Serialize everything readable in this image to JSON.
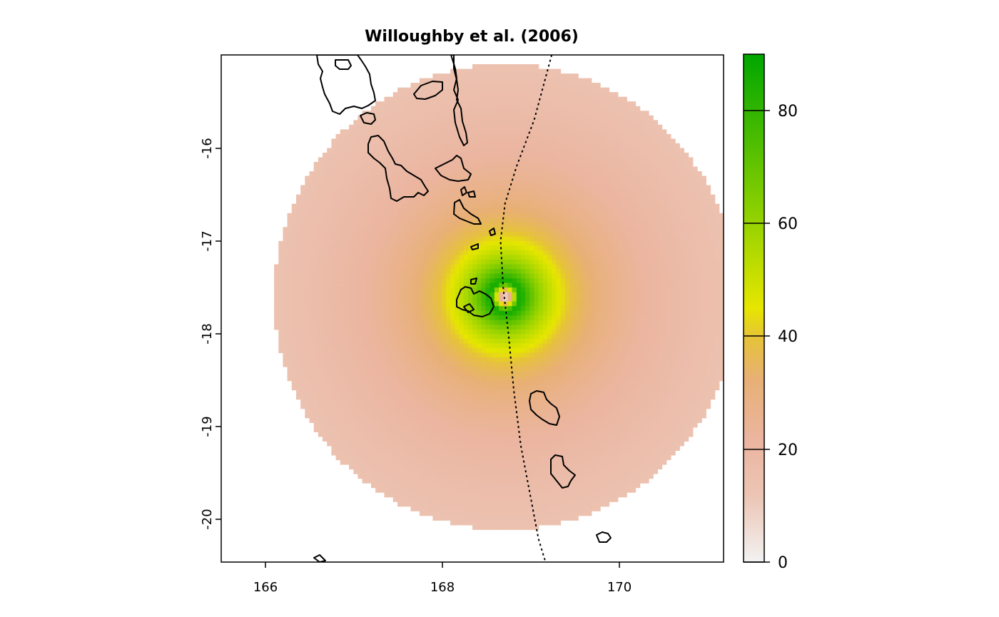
{
  "title": "Willoughby et al. (2006)",
  "x_ticks": [
    "166",
    "168",
    "170"
  ],
  "y_ticks": [
    "-16",
    "-17",
    "-18",
    "-19",
    "-20"
  ],
  "legend_ticks": [
    "0",
    "20",
    "40",
    "60",
    "80"
  ],
  "colors": {
    "scale_low": "#f2f2f2",
    "scale_pink": "#ebb5a0",
    "scale_orange": "#e6ab55",
    "scale_yellow": "#e6e600",
    "scale_green": "#00a600",
    "coastline": "#000000",
    "track": "#000000"
  },
  "chart_data": {
    "type": "heatmap",
    "title": "Willoughby et al. (2006)",
    "xlabel": "",
    "ylabel": "",
    "xlim": [
      165.5,
      171.2
    ],
    "ylim": [
      -20.45,
      -15.0
    ],
    "x_ticks": [
      166,
      168,
      170
    ],
    "y_ticks": [
      -16,
      -17,
      -18,
      -19,
      -20
    ],
    "legend": {
      "position": "right",
      "range": [
        0,
        90
      ],
      "ticks": [
        0,
        20,
        40,
        60,
        80
      ]
    },
    "storm_center": {
      "lon": 168.72,
      "lat": -17.6
    },
    "field_radius_deg": 2.5,
    "peak_value": 85,
    "track": [
      {
        "lon": 169.25,
        "lat": -15.0
      },
      {
        "lon": 169.05,
        "lat": -15.7
      },
      {
        "lon": 168.85,
        "lat": -16.2
      },
      {
        "lon": 168.72,
        "lat": -16.6
      },
      {
        "lon": 168.67,
        "lat": -17.0
      },
      {
        "lon": 168.7,
        "lat": -17.5
      },
      {
        "lon": 168.76,
        "lat": -18.0
      },
      {
        "lon": 168.82,
        "lat": -18.6
      },
      {
        "lon": 168.9,
        "lat": -19.2
      },
      {
        "lon": 169.02,
        "lat": -19.8
      },
      {
        "lon": 169.1,
        "lat": -20.2
      },
      {
        "lon": 169.18,
        "lat": -20.45
      }
    ]
  }
}
